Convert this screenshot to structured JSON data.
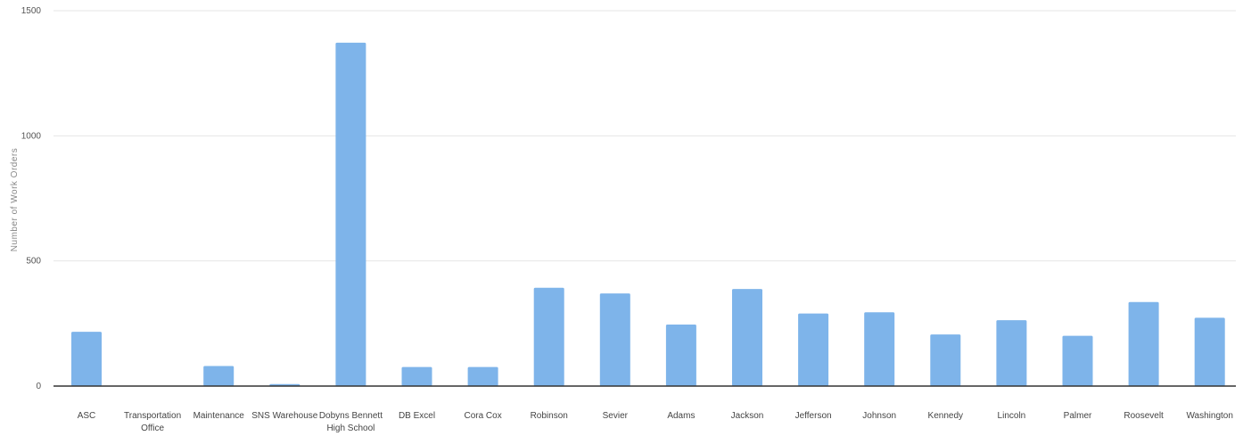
{
  "chart_data": {
    "type": "bar",
    "title": "",
    "xlabel": "",
    "ylabel": "Number of Work Orders",
    "ylim": [
      0,
      1500
    ],
    "yticks": [
      0,
      500,
      1000,
      1500
    ],
    "grid": true,
    "legend": "none",
    "bar_color": "#7eb4ea",
    "categories": [
      [
        "ASC"
      ],
      [
        "Transportation",
        "Office"
      ],
      [
        "Maintenance"
      ],
      [
        "SNS Warehouse"
      ],
      [
        "Dobyns Bennett",
        "High School"
      ],
      [
        "DB Excel"
      ],
      [
        "Cora Cox"
      ],
      [
        "Robinson"
      ],
      [
        "Sevier"
      ],
      [
        "Adams"
      ],
      [
        "Jackson"
      ],
      [
        "Jefferson"
      ],
      [
        "Johnson"
      ],
      [
        "Kennedy"
      ],
      [
        "Lincoln"
      ],
      [
        "Palmer"
      ],
      [
        "Roosevelt"
      ],
      [
        "Washington"
      ]
    ],
    "values": [
      217,
      2,
      80,
      8,
      1372,
      76,
      76,
      393,
      370,
      246,
      388,
      290,
      295,
      206,
      263,
      201,
      336,
      273
    ]
  }
}
